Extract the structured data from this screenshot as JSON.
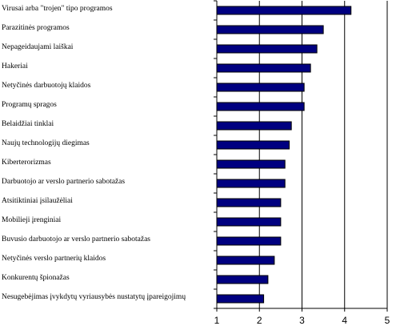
{
  "chart_data": {
    "type": "barh",
    "categories": [
      "Virusai arba \"trojen\" tipo programos",
      "Parazitinės programos",
      "Nepageidaujami laiškai",
      "Hakeriai",
      "Netyčinės darbuotojų klaidos",
      "Programų spragos",
      "Belaidžiai tinklai",
      "Naujų technologijų diegimas",
      "Kiberterorizmas",
      "Darbuotojo ar verslo partnerio sabotažas",
      "Atsitiktiniai įsilaužėliai",
      "Mobilieji įrenginiai",
      "Buvusio darbuotojo ar verslo partnerio sabotažas",
      "Netyčinės verslo partnerių klaidos",
      "Konkurentų špionažas",
      "Nesugebėjimas įvykdytų vyriausybės nustatytų įpareigojimų"
    ],
    "values": [
      4.15,
      3.5,
      3.35,
      3.2,
      3.05,
      3.05,
      2.75,
      2.7,
      2.6,
      2.6,
      2.5,
      2.5,
      2.5,
      2.35,
      2.2,
      2.1
    ],
    "color": "#000080",
    "xlim": [
      1,
      5
    ],
    "xticks": [
      1,
      2,
      3,
      4,
      5
    ],
    "grid": true
  }
}
